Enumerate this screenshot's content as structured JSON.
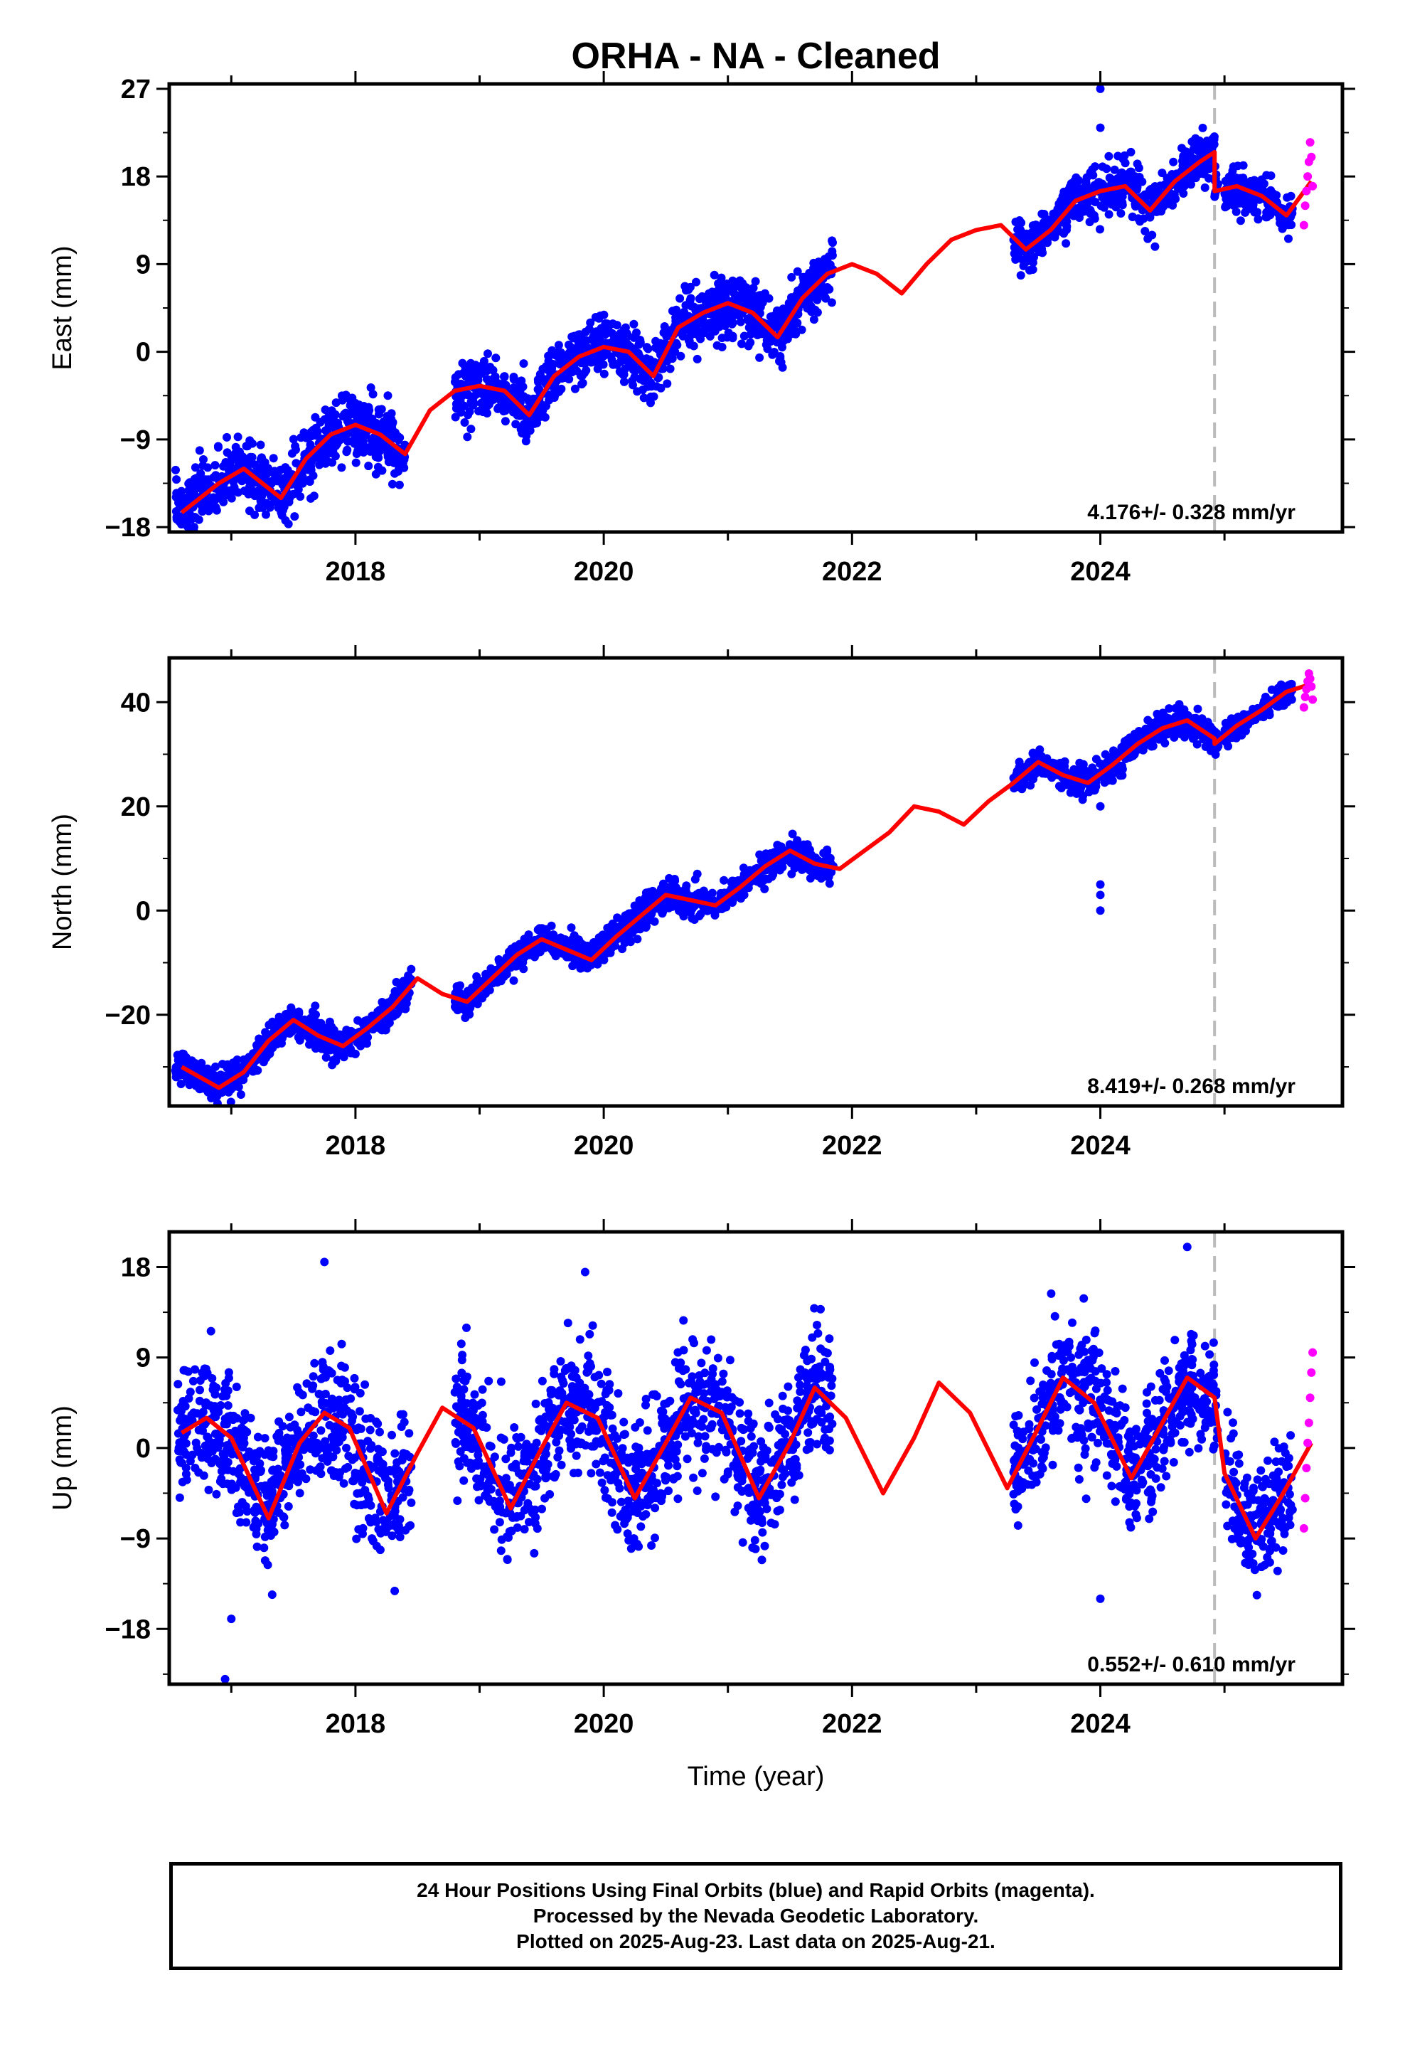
{
  "title": "ORHA  - NA - Cleaned",
  "colors": {
    "final_orbits": "#0000ff",
    "rapid_orbits": "#ff00ff",
    "model": "#ff0000",
    "break_line": "#bbbbbb"
  },
  "chart_data": [
    {
      "type": "scatter",
      "component": "East",
      "ylabel": "East (mm)",
      "xlabel": "",
      "xlim": [
        2016.5,
        2025.95
      ],
      "ylim": [
        -18.5,
        27.5
      ],
      "yticks": [
        27,
        18,
        9,
        0,
        -9,
        -18
      ],
      "xticks": [
        2018,
        2020,
        2022,
        2024
      ],
      "rate_label": "4.176+/- 0.328 mm/yr",
      "break_year": 2024.92,
      "grid": false,
      "model_curve": {
        "x": [
          2016.6,
          2016.9,
          2017.1,
          2017.4,
          2017.6,
          2017.8,
          2018.0,
          2018.2,
          2018.4,
          2018.6,
          2018.8,
          2019.0,
          2019.2,
          2019.4,
          2019.6,
          2019.8,
          2020.0,
          2020.2,
          2020.4,
          2020.6,
          2020.8,
          2021.0,
          2021.2,
          2021.4,
          2021.6,
          2021.8,
          2022.0,
          2022.2,
          2022.4,
          2022.6,
          2022.8,
          2023.0,
          2023.2,
          2023.4,
          2023.6,
          2023.8,
          2024.0,
          2024.2,
          2024.4,
          2024.6,
          2024.8,
          2024.92,
          2024.92,
          2025.1,
          2025.3,
          2025.5,
          2025.7
        ],
        "y": [
          -16.5,
          -13.5,
          -12.0,
          -15.0,
          -11.0,
          -8.5,
          -7.5,
          -8.5,
          -10.5,
          -6.0,
          -4.0,
          -3.5,
          -4.0,
          -6.5,
          -2.5,
          -0.5,
          0.5,
          0.0,
          -2.5,
          2.5,
          4.0,
          5.0,
          4.0,
          1.5,
          5.5,
          8.0,
          9.0,
          8.0,
          6.0,
          9.0,
          11.5,
          12.5,
          13.0,
          10.5,
          12.5,
          15.5,
          16.5,
          17.0,
          14.5,
          17.5,
          19.5,
          20.5,
          16.5,
          17.0,
          16.0,
          14.0,
          17.5
        ]
      },
      "final_scatter": {
        "segments": [
          {
            "x": [
              2016.55,
              2018.4
            ],
            "noise": 1.6
          },
          {
            "x": [
              2018.8,
              2021.85
            ],
            "noise": 1.5
          },
          {
            "x": [
              2023.3,
              2024.95
            ],
            "noise": 1.3
          },
          {
            "x": [
              2025.0,
              2025.55
            ],
            "noise": 1.0
          }
        ],
        "outliers": [
          {
            "x": 2024.0,
            "y": 27.0
          },
          {
            "x": 2024.0,
            "y": 23.0
          },
          {
            "x": 2016.7,
            "y": -18.0
          }
        ]
      },
      "rapid_points": {
        "x": [
          2025.64,
          2025.65,
          2025.66,
          2025.67,
          2025.68,
          2025.69,
          2025.7,
          2025.71
        ],
        "y": [
          13.0,
          15.0,
          16.5,
          18.0,
          19.5,
          21.5,
          20.0,
          17.0
        ]
      }
    },
    {
      "type": "scatter",
      "component": "North",
      "ylabel": "North (mm)",
      "xlabel": "",
      "xlim": [
        2016.5,
        2025.95
      ],
      "ylim": [
        -37.5,
        48.5
      ],
      "yticks": [
        40,
        20,
        0,
        -20
      ],
      "xticks": [
        2018,
        2020,
        2022,
        2024
      ],
      "rate_label": "8.419+/- 0.268 mm/yr",
      "break_year": 2024.92,
      "grid": false,
      "model_curve": {
        "x": [
          2016.6,
          2016.9,
          2017.1,
          2017.3,
          2017.5,
          2017.7,
          2017.9,
          2018.1,
          2018.3,
          2018.5,
          2018.7,
          2018.9,
          2019.1,
          2019.3,
          2019.5,
          2019.7,
          2019.9,
          2020.1,
          2020.3,
          2020.5,
          2020.7,
          2020.9,
          2021.1,
          2021.3,
          2021.5,
          2021.7,
          2021.9,
          2022.1,
          2022.3,
          2022.5,
          2022.7,
          2022.9,
          2023.1,
          2023.3,
          2023.5,
          2023.7,
          2023.9,
          2024.1,
          2024.3,
          2024.5,
          2024.7,
          2024.92,
          2024.92,
          2025.1,
          2025.3,
          2025.5,
          2025.7
        ],
        "y": [
          -30.0,
          -34.0,
          -31.0,
          -25.0,
          -21.0,
          -24.0,
          -26.0,
          -22.5,
          -18.5,
          -13.0,
          -16.0,
          -17.5,
          -13.0,
          -8.5,
          -5.5,
          -7.5,
          -9.5,
          -5.0,
          -1.0,
          3.0,
          2.0,
          1.0,
          4.5,
          8.5,
          11.5,
          9.0,
          8.0,
          11.5,
          15.0,
          20.0,
          19.0,
          16.5,
          21.0,
          24.5,
          28.5,
          26.0,
          24.5,
          28.0,
          32.0,
          35.0,
          36.5,
          33.0,
          32.0,
          35.5,
          38.5,
          42.0,
          43.5
        ]
      },
      "final_scatter": {
        "segments": [
          {
            "x": [
              2016.55,
              2018.45
            ],
            "noise": 1.5
          },
          {
            "x": [
              2018.8,
              2021.85
            ],
            "noise": 1.4
          },
          {
            "x": [
              2023.3,
              2024.95
            ],
            "noise": 1.3
          },
          {
            "x": [
              2025.0,
              2025.55
            ],
            "noise": 1.0
          }
        ],
        "outliers": [
          {
            "x": 2024.0,
            "y": 5.0
          },
          {
            "x": 2024.0,
            "y": 3.0
          },
          {
            "x": 2024.0,
            "y": 0.0
          },
          {
            "x": 2024.0,
            "y": 20.0
          }
        ]
      },
      "rapid_points": {
        "x": [
          2025.64,
          2025.65,
          2025.66,
          2025.67,
          2025.68,
          2025.69,
          2025.7,
          2025.71
        ],
        "y": [
          39.0,
          41.0,
          42.5,
          44.0,
          45.5,
          44.5,
          43.0,
          40.5
        ]
      }
    },
    {
      "type": "scatter",
      "component": "Up",
      "ylabel": "Up (mm)",
      "xlabel": "Time (year)",
      "xlim": [
        2016.5,
        2025.95
      ],
      "ylim": [
        -23.5,
        21.5
      ],
      "yticks": [
        18,
        9,
        0,
        -9,
        -18
      ],
      "xticks": [
        2018,
        2020,
        2022,
        2024
      ],
      "rate_label": "0.552+/- 0.610 mm/yr",
      "break_year": 2024.92,
      "grid": false,
      "model_curve": {
        "x": [
          2016.6,
          2016.8,
          2017.0,
          2017.3,
          2017.55,
          2017.75,
          2017.95,
          2018.25,
          2018.5,
          2018.7,
          2018.95,
          2019.25,
          2019.5,
          2019.7,
          2019.95,
          2020.25,
          2020.5,
          2020.7,
          2020.95,
          2021.25,
          2021.5,
          2021.7,
          2021.95,
          2022.25,
          2022.5,
          2022.7,
          2022.95,
          2023.25,
          2023.5,
          2023.7,
          2023.95,
          2024.25,
          2024.5,
          2024.7,
          2024.92,
          2025.0,
          2025.25,
          2025.45,
          2025.7
        ],
        "y": [
          1.5,
          3.0,
          1.0,
          -7.0,
          0.5,
          3.5,
          2.0,
          -6.5,
          -0.5,
          4.0,
          2.0,
          -6.0,
          0.0,
          4.5,
          3.0,
          -5.0,
          0.5,
          5.0,
          3.5,
          -5.0,
          0.5,
          6.0,
          3.0,
          -4.5,
          1.0,
          6.5,
          3.5,
          -4.0,
          2.0,
          7.0,
          4.5,
          -3.0,
          2.5,
          7.0,
          5.0,
          -2.5,
          -9.0,
          -5.0,
          0.5
        ]
      },
      "final_scatter": {
        "segments": [
          {
            "x": [
              2016.55,
              2018.45
            ],
            "noise": 3.2
          },
          {
            "x": [
              2018.8,
              2021.85
            ],
            "noise": 3.2
          },
          {
            "x": [
              2023.3,
              2024.95
            ],
            "noise": 3.0
          },
          {
            "x": [
              2025.0,
              2025.55
            ],
            "noise": 2.5
          }
        ],
        "outliers": [
          {
            "x": 2016.95,
            "y": -23.0
          },
          {
            "x": 2017.75,
            "y": 18.5
          },
          {
            "x": 2019.85,
            "y": 17.5
          },
          {
            "x": 2024.7,
            "y": 20.0
          },
          {
            "x": 2024.0,
            "y": -15.0
          },
          {
            "x": 2017.0,
            "y": -17.0
          }
        ]
      },
      "rapid_points": {
        "x": [
          2025.64,
          2025.65,
          2025.66,
          2025.67,
          2025.68,
          2025.69,
          2025.7,
          2025.71
        ],
        "y": [
          -8.0,
          -5.0,
          -2.0,
          0.5,
          2.5,
          5.0,
          7.5,
          9.5
        ]
      }
    }
  ],
  "footer": {
    "line1": "24 Hour Positions Using Final Orbits (blue) and Rapid Orbits (magenta).",
    "line2": "Processed by the Nevada Geodetic Laboratory.",
    "line3": "Plotted on 2025-Aug-23. Last data on 2025-Aug-21."
  }
}
